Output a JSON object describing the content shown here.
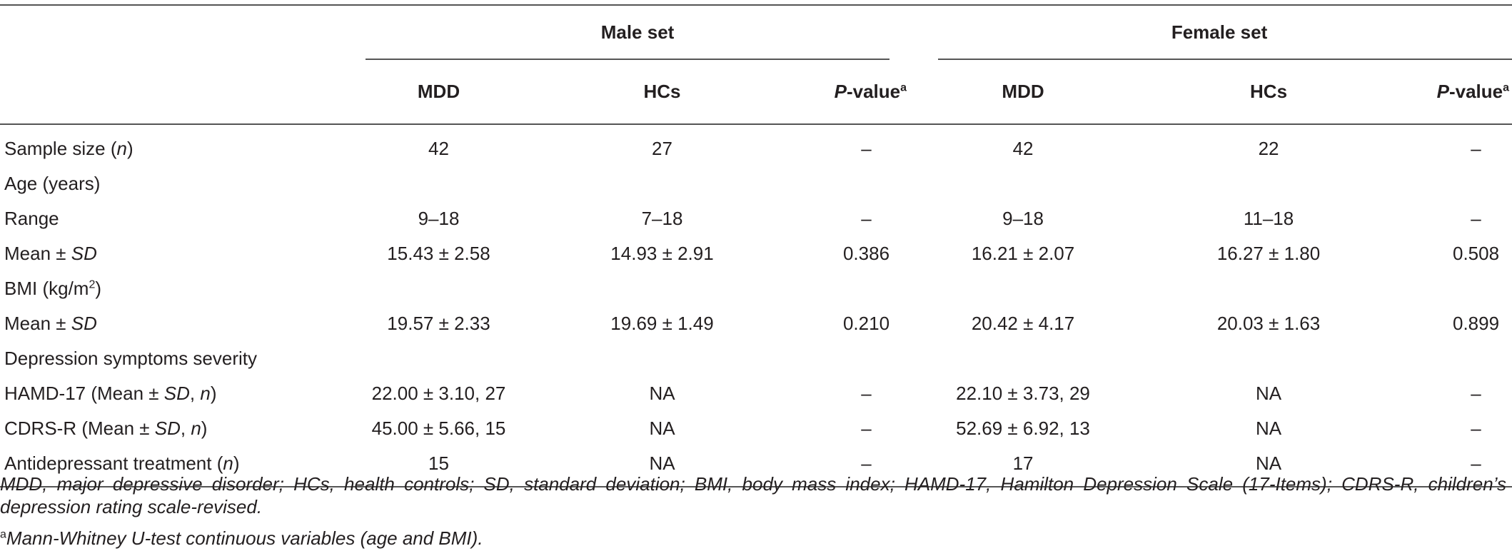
{
  "table": {
    "groups": {
      "male": "Male set",
      "female": "Female set"
    },
    "columns": {
      "mdd": "MDD",
      "hcs": "HCs",
      "p_prefix": "P",
      "p_suffix": "-value",
      "p_sup": "a"
    },
    "rows": [
      {
        "label": "Sample size (",
        "label_it": "n",
        "label_end": ")",
        "m_mdd": "42",
        "m_hcs": "27",
        "m_p": "–",
        "f_mdd": "42",
        "f_hcs": "22",
        "f_p": "–"
      },
      {
        "label": "Age (years)"
      },
      {
        "label": "Range",
        "m_mdd": "9–18",
        "m_hcs": "7–18",
        "m_p": "–",
        "f_mdd": "9–18",
        "f_hcs": "11–18",
        "f_p": "–"
      },
      {
        "label": "Mean ± ",
        "label_it": "SD",
        "m_mdd": "15.43 ± 2.58",
        "m_hcs": "14.93 ± 2.91",
        "m_p": "0.386",
        "f_mdd": "16.21 ± 2.07",
        "f_hcs": "16.27 ± 1.80",
        "f_p": "0.508"
      },
      {
        "label": "BMI (kg/m",
        "label_sup": "2",
        "label_end": ")"
      },
      {
        "label": "Mean ± ",
        "label_it": "SD",
        "m_mdd": "19.57 ± 2.33",
        "m_hcs": "19.69 ± 1.49",
        "m_p": "0.210",
        "f_mdd": "20.42 ± 4.17",
        "f_hcs": "20.03 ± 1.63",
        "f_p": "0.899"
      },
      {
        "label": "Depression symptoms severity"
      },
      {
        "label": "HAMD-17 (Mean ± ",
        "label_it": "SD",
        "label_mid": ", ",
        "label_it2": "n",
        "label_end": ")",
        "m_mdd": "22.00 ± 3.10, 27",
        "m_hcs": "NA",
        "m_p": "–",
        "f_mdd": "22.10 ± 3.73, 29",
        "f_hcs": "NA",
        "f_p": "–"
      },
      {
        "label": "CDRS-R (Mean ± ",
        "label_it": "SD",
        "label_mid": ", ",
        "label_it2": "n",
        "label_end": ")",
        "m_mdd": "45.00 ± 5.66, 15",
        "m_hcs": "NA",
        "m_p": "–",
        "f_mdd": "52.69 ± 6.92, 13",
        "f_hcs": "NA",
        "f_p": "–"
      },
      {
        "label": "Antidepressant treatment (",
        "label_it": "n",
        "label_end": ")",
        "m_mdd": "15",
        "m_hcs": "NA",
        "m_p": "–",
        "f_mdd": "17",
        "f_hcs": "NA",
        "f_p": "–"
      }
    ]
  },
  "notes": {
    "abbreviations": "MDD, major depressive disorder; HCs, health controls; SD, standard deviation; BMI, body mass index; HAMD-17, Hamilton Depression Scale (17-Items); CDRS-R, children’s depression rating scale-revised.",
    "footnote_mark": "a",
    "footnote_text": "Mann-Whitney U-test continuous variables (age and BMI)."
  }
}
